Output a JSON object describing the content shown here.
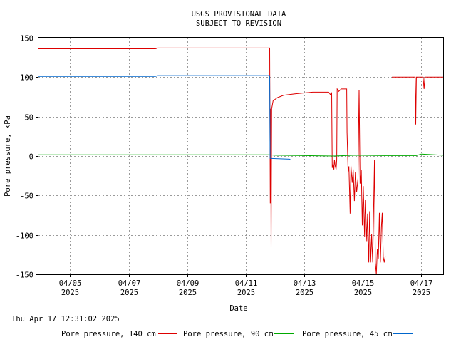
{
  "chart_data": {
    "type": "line",
    "title": "USGS PROVISIONAL DATA",
    "subtitle": "SUBJECT TO REVISION",
    "xlabel": "Date",
    "ylabel": "Pore pressure, kPa",
    "timestamp": "Thu Apr 17 12:31:02 2025",
    "grid": true,
    "legend_position": "bottom",
    "xlim": [
      "2025-04-03T22:00",
      "2025-04-17T18:00"
    ],
    "ylim": [
      -150,
      150
    ],
    "yticks": [
      150,
      100,
      50,
      0,
      -50,
      -100,
      -150
    ],
    "xticks": [
      {
        "date": "2025-04-05",
        "label": "04/05",
        "year": "2025"
      },
      {
        "date": "2025-04-07",
        "label": "04/07",
        "year": "2025"
      },
      {
        "date": "2025-04-09",
        "label": "04/09",
        "year": "2025"
      },
      {
        "date": "2025-04-11",
        "label": "04/11",
        "year": "2025"
      },
      {
        "date": "2025-04-13",
        "label": "04/13",
        "year": "2025"
      },
      {
        "date": "2025-04-15",
        "label": "04/15",
        "year": "2025"
      },
      {
        "date": "2025-04-17",
        "label": "04/17",
        "year": "2025"
      }
    ],
    "series": [
      {
        "name": "Pore pressure, 140 cm",
        "color": "#dd0000",
        "points": [
          [
            "2025-04-03T22:00",
            136
          ],
          [
            "2025-04-07T22:00",
            136
          ],
          [
            "2025-04-08T00:00",
            137
          ],
          [
            "2025-04-11T19:40",
            137
          ],
          [
            "2025-04-11T19:50",
            65
          ],
          [
            "2025-04-11T20:10",
            -60
          ],
          [
            "2025-04-11T20:30",
            60
          ],
          [
            "2025-04-11T20:50",
            -116
          ],
          [
            "2025-04-11T21:20",
            60
          ],
          [
            "2025-04-11T22:30",
            70
          ],
          [
            "2025-04-12T02:00",
            74
          ],
          [
            "2025-04-12T07:00",
            77
          ],
          [
            "2025-04-12T17:00",
            79
          ],
          [
            "2025-04-13T07:00",
            81
          ],
          [
            "2025-04-13T20:00",
            81
          ],
          [
            "2025-04-13T21:30",
            78
          ],
          [
            "2025-04-13T22:30",
            80
          ],
          [
            "2025-04-13T23:00",
            -15
          ],
          [
            "2025-04-13T23:40",
            -10
          ],
          [
            "2025-04-14T00:20",
            -17
          ],
          [
            "2025-04-14T00:50",
            -5
          ],
          [
            "2025-04-14T01:30",
            -13
          ],
          [
            "2025-04-14T02:10",
            -17
          ],
          [
            "2025-04-14T02:40",
            -5
          ],
          [
            "2025-04-14T03:00",
            85
          ],
          [
            "2025-04-14T04:20",
            82
          ],
          [
            "2025-04-14T06:20",
            85
          ],
          [
            "2025-04-14T10:50",
            85
          ],
          [
            "2025-04-14T11:10",
            30
          ],
          [
            "2025-04-14T12:00",
            -20
          ],
          [
            "2025-04-14T12:40",
            -13
          ],
          [
            "2025-04-14T13:40",
            -73
          ],
          [
            "2025-04-14T14:20",
            -12
          ],
          [
            "2025-04-14T15:20",
            -34
          ],
          [
            "2025-04-14T16:10",
            -17
          ],
          [
            "2025-04-14T17:10",
            -57
          ],
          [
            "2025-04-14T18:00",
            -20
          ],
          [
            "2025-04-14T19:00",
            -46
          ],
          [
            "2025-04-14T20:10",
            -28
          ],
          [
            "2025-04-14T21:00",
            84
          ],
          [
            "2025-04-14T21:50",
            -35
          ],
          [
            "2025-04-14T22:50",
            -18
          ],
          [
            "2025-04-14T23:40",
            -88
          ],
          [
            "2025-04-15T00:30",
            -38
          ],
          [
            "2025-04-15T01:30",
            -102
          ],
          [
            "2025-04-15T02:10",
            -56
          ],
          [
            "2025-04-15T03:20",
            -108
          ],
          [
            "2025-04-15T04:00",
            -73
          ],
          [
            "2025-04-15T05:00",
            -135
          ],
          [
            "2025-04-15T05:40",
            -70
          ],
          [
            "2025-04-15T06:30",
            -135
          ],
          [
            "2025-04-15T07:20",
            -99
          ],
          [
            "2025-04-15T08:10",
            -135
          ],
          [
            "2025-04-15T09:00",
            -62
          ],
          [
            "2025-04-15T09:40",
            -5
          ],
          [
            "2025-04-15T10:20",
            -135
          ],
          [
            "2025-04-15T11:10",
            -150
          ],
          [
            "2025-04-15T12:00",
            -118
          ],
          [
            "2025-04-15T12:50",
            -130
          ],
          [
            "2025-04-15T13:40",
            -72
          ],
          [
            "2025-04-15T14:30",
            -135
          ],
          [
            "2025-04-15T15:20",
            -90
          ],
          [
            "2025-04-15T16:00",
            -72
          ],
          [
            "2025-04-15T16:50",
            -128
          ],
          [
            "2025-04-15T17:40",
            -135
          ],
          [
            "2025-04-15T18:30",
            -127
          ]
        ],
        "points_2": [
          [
            "2025-04-16T00:00",
            100
          ],
          [
            "2025-04-16T19:00",
            100
          ],
          [
            "2025-04-16T19:30",
            40
          ],
          [
            "2025-04-16T20:00",
            100
          ],
          [
            "2025-04-17T01:30",
            100
          ],
          [
            "2025-04-17T02:20",
            85
          ],
          [
            "2025-04-17T03:00",
            100
          ],
          [
            "2025-04-17T18:00",
            100
          ]
        ]
      },
      {
        "name": "Pore pressure, 90 cm",
        "color": "#00aa00",
        "points": [
          [
            "2025-04-03T22:00",
            1.5
          ],
          [
            "2025-04-11T19:00",
            1.5
          ],
          [
            "2025-04-12T00:00",
            1
          ],
          [
            "2025-04-13T00:00",
            0.5
          ],
          [
            "2025-04-14T00:00",
            0
          ],
          [
            "2025-04-14T18:00",
            1
          ],
          [
            "2025-04-15T18:00",
            0.5
          ],
          [
            "2025-04-16T20:00",
            0.5
          ],
          [
            "2025-04-17T00:00",
            2.5
          ],
          [
            "2025-04-17T18:00",
            1
          ]
        ]
      },
      {
        "name": "Pore pressure, 45 cm",
        "color": "#0066cc",
        "points": [
          [
            "2025-04-03T22:00",
            101
          ],
          [
            "2025-04-07T22:00",
            101
          ],
          [
            "2025-04-08T00:00",
            102
          ],
          [
            "2025-04-11T19:40",
            102
          ],
          [
            "2025-04-11T20:00",
            -3
          ],
          [
            "2025-04-12T12:00",
            -4
          ],
          [
            "2025-04-12T13:00",
            -5
          ],
          [
            "2025-04-17T18:00",
            -5
          ]
        ]
      }
    ]
  }
}
